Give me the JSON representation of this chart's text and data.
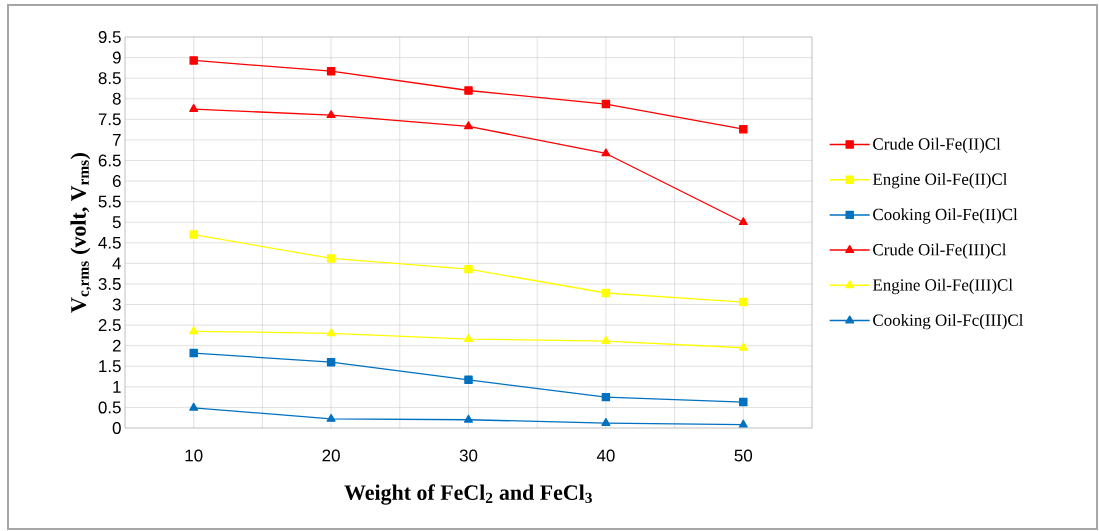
{
  "chart_data": {
    "type": "line",
    "xlabel": "Weight of FeCl$_{2}$ and FeCl$_{3}$",
    "ylabel": "V$_{c,rms}$ (volt, V$_{rms}$)",
    "x": [
      10,
      20,
      30,
      40,
      50
    ],
    "xlim": [
      5,
      55
    ],
    "xticks": [
      {
        "value": 5,
        "label": null
      },
      10,
      {
        "value": 15,
        "label": null
      },
      20,
      {
        "value": 25,
        "label": null
      },
      30,
      {
        "value": 35,
        "label": null
      },
      40,
      {
        "value": 45,
        "label": null
      },
      50,
      {
        "value": 55,
        "label": null
      }
    ],
    "ylim": [
      0,
      9.5
    ],
    "yticks": [
      0,
      0.5,
      1,
      1.5,
      2,
      2.5,
      3,
      3.5,
      4,
      4.5,
      5,
      5.5,
      6,
      6.5,
      7,
      7.5,
      8,
      8.5,
      9,
      9.5
    ],
    "grid": true,
    "legend": "right",
    "series": [
      {
        "name": "Crude Oil-Fe(II)Cl",
        "color": "#ff0000",
        "marker": "square",
        "values": [
          8.93,
          8.67,
          8.2,
          7.87,
          7.26
        ]
      },
      {
        "name": "Engine Oil-Fe(II)Cl",
        "color": "#ffff00",
        "marker": "square",
        "values": [
          4.7,
          4.12,
          3.86,
          3.28,
          3.06
        ]
      },
      {
        "name": "Cooking Oil-Fe(II)Cl",
        "color": "#0070c0",
        "marker": "square",
        "values": [
          1.82,
          1.6,
          1.17,
          0.75,
          0.63
        ]
      },
      {
        "name": "Crude Oil-Fe(III)Cl",
        "color": "#ff0000",
        "marker": "triangle",
        "values": [
          7.75,
          7.6,
          7.33,
          6.67,
          5.0
        ]
      },
      {
        "name": "Engine Oil-Fe(III)Cl",
        "color": "#ffff00",
        "marker": "triangle",
        "values": [
          2.35,
          2.3,
          2.16,
          2.11,
          1.95
        ]
      },
      {
        "name": "Cooking Oil-Fc(III)Cl",
        "color": "#0070c0",
        "marker": "triangle",
        "values": [
          0.49,
          0.22,
          0.2,
          0.12,
          0.08
        ]
      }
    ]
  }
}
